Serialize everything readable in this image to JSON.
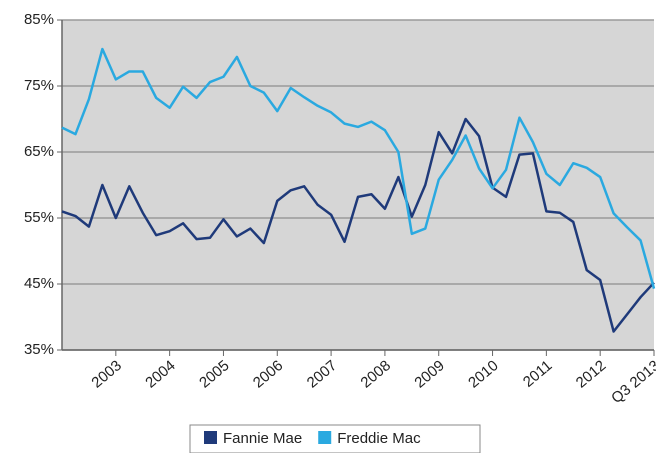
{
  "chart_data": {
    "type": "line",
    "categories": [
      null,
      null,
      null,
      null,
      "2003",
      null,
      null,
      null,
      "2004",
      null,
      null,
      null,
      "2005",
      null,
      null,
      null,
      "2006",
      null,
      null,
      null,
      "2007",
      null,
      null,
      null,
      "2008",
      null,
      null,
      null,
      "2009",
      null,
      null,
      null,
      "2010",
      null,
      null,
      null,
      "2011",
      null,
      null,
      null,
      "2012",
      null,
      null,
      null,
      "Q3 2013"
    ],
    "series": [
      {
        "name": "Fannie Mae",
        "color": "#1f3a7a",
        "values": [
          56.0,
          55.3,
          53.7,
          60.0,
          55.0,
          59.8,
          55.8,
          52.4,
          53.0,
          54.2,
          51.8,
          52.0,
          54.8,
          52.2,
          53.4,
          51.2,
          57.6,
          59.2,
          59.8,
          57.0,
          55.5,
          51.4,
          58.2,
          58.6,
          56.4,
          61.2,
          55.2,
          60.0,
          68.0,
          64.8,
          70.0,
          67.4,
          59.6,
          58.2,
          64.6,
          64.8,
          56.0,
          55.8,
          54.4,
          47.1,
          45.6,
          37.8,
          40.4,
          43.0,
          45.2
        ]
      },
      {
        "name": "Freddie Mac",
        "color": "#2aa9e0",
        "values": [
          68.7,
          67.7,
          73.0,
          80.6,
          76.0,
          77.2,
          77.2,
          73.2,
          71.7,
          74.9,
          73.2,
          75.6,
          76.4,
          79.4,
          75.0,
          74.0,
          71.2,
          74.7,
          73.3,
          72.0,
          71.0,
          69.3,
          68.8,
          69.6,
          68.3,
          65.0,
          52.6,
          53.4,
          60.8,
          63.8,
          67.5,
          62.5,
          59.5,
          62.3,
          70.2,
          66.5,
          61.7,
          60.0,
          63.3,
          62.6,
          61.2,
          55.7,
          53.6,
          51.6,
          44.3
        ]
      }
    ],
    "ylim": [
      35,
      85
    ],
    "yticks": [
      {
        "value": 35,
        "label": "35%"
      },
      {
        "value": 45,
        "label": "45%"
      },
      {
        "value": 55,
        "label": "55%"
      },
      {
        "value": 65,
        "label": "65%"
      },
      {
        "value": 75,
        "label": "75%"
      },
      {
        "value": 85,
        "label": "85%"
      }
    ],
    "grid": true,
    "legend": "bottom"
  }
}
